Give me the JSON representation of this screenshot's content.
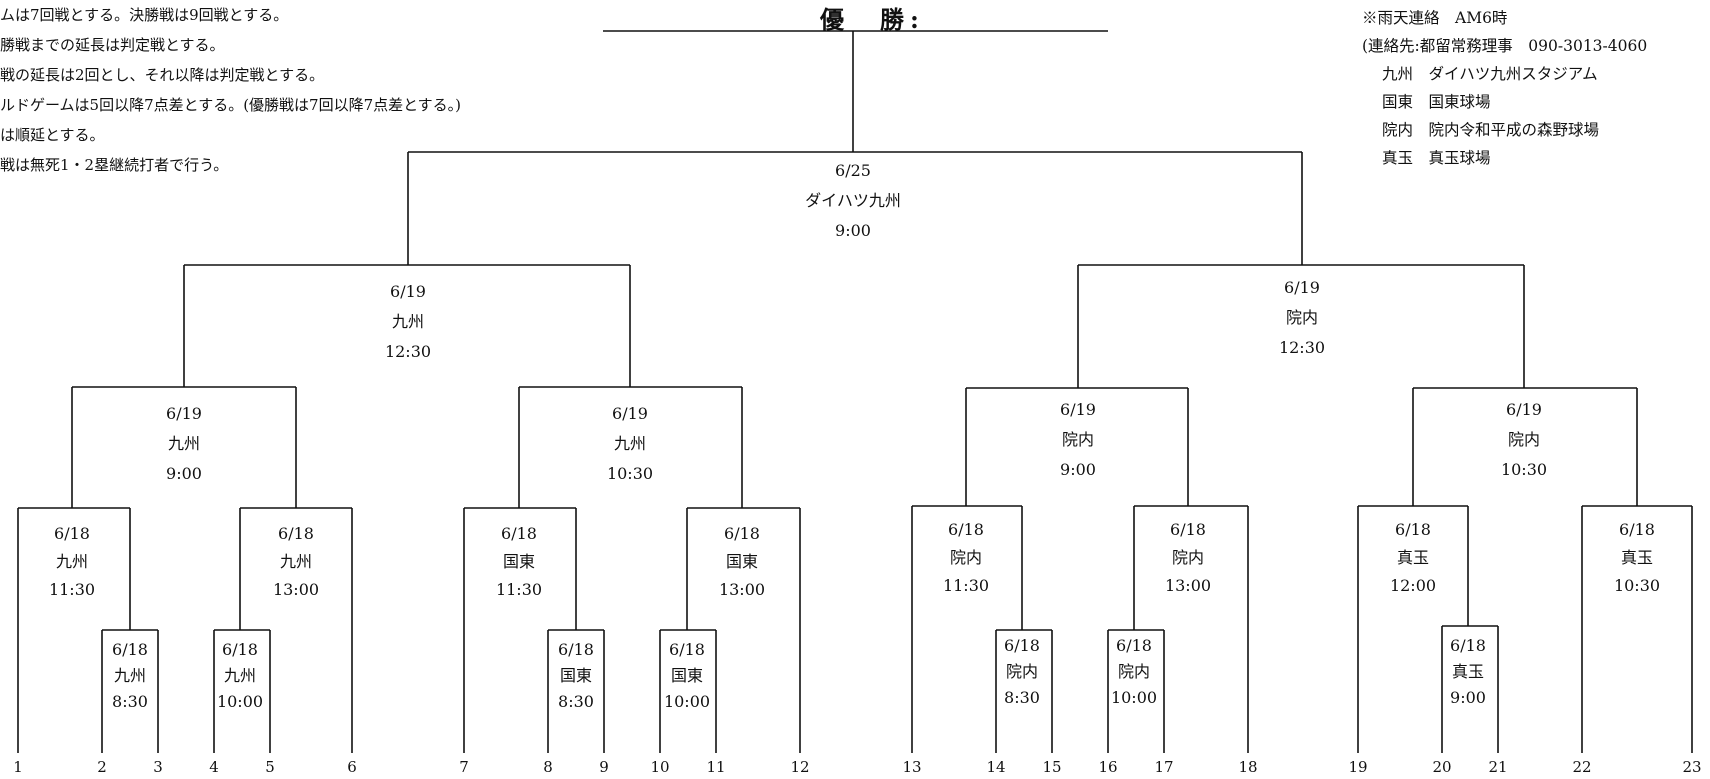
{
  "title": "優　勝:",
  "rules": [
    "ムは7回戦とする。決勝戦は9回戦とする。",
    "勝戦までの延長は判定戦とする。",
    "戦の延長は2回とし、それ以降は判定戦とする。",
    "ルドゲームは5回以降7点差とする。(優勝戦は7回以降7点差とする。)",
    "は順延とする。",
    "戦は無死1・2塁継続打者で行う。"
  ],
  "notes": {
    "rain": "※雨天連絡　AM6時",
    "contact": "(連絡先:都留常務理事　090-3013-4060",
    "venues": [
      "九州　ダイハツ九州スタジアム",
      "国東　国東球場",
      "院内　院内令和平成の森野球場",
      "真玉　真玉球場"
    ]
  },
  "team_numbers": [
    "1",
    "2",
    "3",
    "4",
    "5",
    "6",
    "7",
    "8",
    "9",
    "10",
    "11",
    "12",
    "13",
    "14",
    "15",
    "16",
    "17",
    "18",
    "19",
    "20",
    "21",
    "22",
    "23"
  ],
  "matches": {
    "final": {
      "date": "6/25",
      "venue": "ダイハツ九州",
      "time": "9:00"
    },
    "semi_l": {
      "date": "6/19",
      "venue": "九州",
      "time": "12:30"
    },
    "semi_r": {
      "date": "6/19",
      "venue": "院内",
      "time": "12:30"
    },
    "q1": {
      "date": "6/19",
      "venue": "九州",
      "time": "9:00"
    },
    "q2": {
      "date": "6/19",
      "venue": "九州",
      "time": "10:30"
    },
    "q3": {
      "date": "6/19",
      "venue": "院内",
      "time": "9:00"
    },
    "q4": {
      "date": "6/19",
      "venue": "院内",
      "time": "10:30"
    },
    "r1": {
      "date": "6/18",
      "venue": "九州",
      "time": "11:30"
    },
    "r2": {
      "date": "6/18",
      "venue": "九州",
      "time": "13:00"
    },
    "r3": {
      "date": "6/18",
      "venue": "国東",
      "time": "11:30"
    },
    "r4": {
      "date": "6/18",
      "venue": "国東",
      "time": "13:00"
    },
    "r5": {
      "date": "6/18",
      "venue": "院内",
      "time": "11:30"
    },
    "r6": {
      "date": "6/18",
      "venue": "院内",
      "time": "13:00"
    },
    "r7": {
      "date": "6/18",
      "venue": "真玉",
      "time": "12:00"
    },
    "r8": {
      "date": "6/18",
      "venue": "真玉",
      "time": "10:30"
    },
    "p1": {
      "date": "6/18",
      "venue": "九州",
      "time": "8:30"
    },
    "p2": {
      "date": "6/18",
      "venue": "九州",
      "time": "10:00"
    },
    "p3": {
      "date": "6/18",
      "venue": "国東",
      "time": "8:30"
    },
    "p4": {
      "date": "6/18",
      "venue": "国東",
      "time": "10:00"
    },
    "p5": {
      "date": "6/18",
      "venue": "院内",
      "time": "8:30"
    },
    "p6": {
      "date": "6/18",
      "venue": "院内",
      "time": "10:00"
    },
    "p7": {
      "date": "6/18",
      "venue": "真玉",
      "time": "9:00"
    }
  }
}
